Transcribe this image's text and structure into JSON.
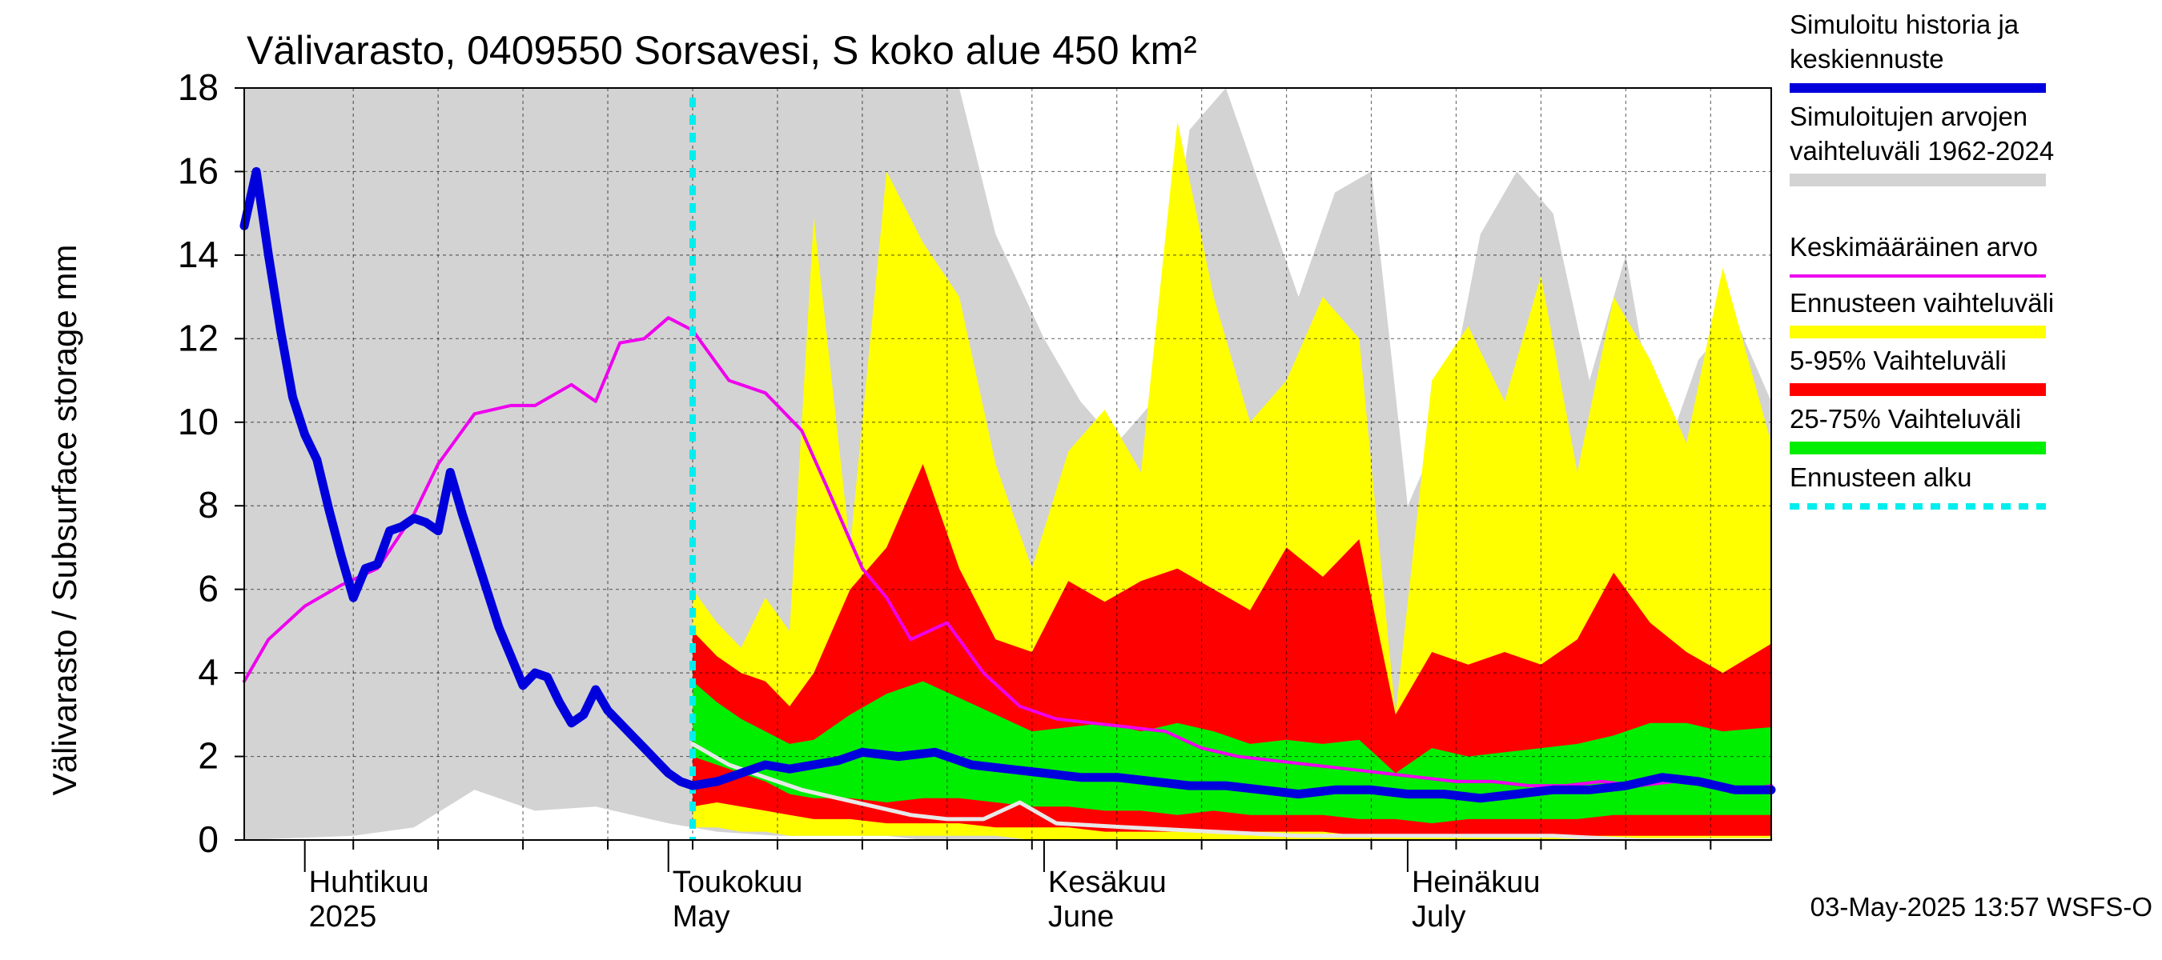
{
  "chart_data": {
    "type": "area",
    "title": "Välivarasto, 0409550 Sorsavesi, S koko alue 450 km²",
    "ylabel": "Välivarasto / Subsurface storage  mm",
    "xlabel": "",
    "ylim": [
      0,
      18
    ],
    "yticks": [
      0,
      2,
      4,
      6,
      8,
      10,
      12,
      14,
      16,
      18
    ],
    "xlim": [
      "2025-03-27",
      "2025-07-31"
    ],
    "grid": true,
    "legend_placement": "right",
    "month_labels": [
      {
        "date": "2025-04-01",
        "label1": "Huhtikuu",
        "label2": "2025"
      },
      {
        "date": "2025-05-01",
        "label1": "Toukokuu",
        "label2": "May"
      },
      {
        "date": "2025-06-01",
        "label1": "Kesäkuu",
        "label2": "June"
      },
      {
        "date": "2025-07-01",
        "label1": "Heinäkuu",
        "label2": "July"
      }
    ],
    "forecast_start": "2025-05-03",
    "footer": "03-May-2025 13:57 WSFS-O",
    "colors": {
      "history": "#0000dd",
      "range_all": "#d3d3d3",
      "mean": "#ee00ee",
      "forecast_range": "#ffff00",
      "p5_95": "#ff0000",
      "p25_75": "#00ee00",
      "forecast_start": "#00eeee",
      "white_line": "#e8e8e8"
    },
    "series": [
      {
        "name": "Simuloitu historia ja keskiennuste",
        "legend_lines": [
          "Simuloitu historia ja",
          "keskiennuste"
        ],
        "color": "#0000dd",
        "x": [
          "2025-03-27",
          "2025-03-28",
          "2025-03-29",
          "2025-03-30",
          "2025-03-31",
          "2025-04-01",
          "2025-04-02",
          "2025-04-03",
          "2025-04-04",
          "2025-04-05",
          "2025-04-06",
          "2025-04-07",
          "2025-04-08",
          "2025-04-09",
          "2025-04-10",
          "2025-04-11",
          "2025-04-12",
          "2025-04-13",
          "2025-04-14",
          "2025-04-15",
          "2025-04-16",
          "2025-04-17",
          "2025-04-18",
          "2025-04-19",
          "2025-04-20",
          "2025-04-21",
          "2025-04-22",
          "2025-04-23",
          "2025-04-24",
          "2025-04-25",
          "2025-04-26",
          "2025-04-27",
          "2025-04-28",
          "2025-04-29",
          "2025-04-30",
          "2025-05-01",
          "2025-05-02",
          "2025-05-03",
          "2025-05-05",
          "2025-05-07",
          "2025-05-09",
          "2025-05-11",
          "2025-05-13",
          "2025-05-15",
          "2025-05-17",
          "2025-05-20",
          "2025-05-23",
          "2025-05-26",
          "2025-05-29",
          "2025-06-01",
          "2025-06-04",
          "2025-06-07",
          "2025-06-10",
          "2025-06-13",
          "2025-06-16",
          "2025-06-19",
          "2025-06-22",
          "2025-06-25",
          "2025-06-28",
          "2025-07-01",
          "2025-07-04",
          "2025-07-07",
          "2025-07-10",
          "2025-07-13",
          "2025-07-16",
          "2025-07-19",
          "2025-07-22",
          "2025-07-25",
          "2025-07-28",
          "2025-07-31"
        ],
        "y": [
          14.7,
          16.0,
          14.0,
          12.2,
          10.6,
          9.7,
          9.1,
          7.9,
          6.8,
          5.8,
          6.5,
          6.6,
          7.4,
          7.5,
          7.7,
          7.6,
          7.4,
          8.8,
          7.8,
          6.9,
          6.0,
          5.1,
          4.4,
          3.7,
          4.0,
          3.9,
          3.3,
          2.8,
          3.0,
          3.6,
          3.1,
          2.8,
          2.5,
          2.2,
          1.9,
          1.6,
          1.4,
          1.3,
          1.4,
          1.6,
          1.8,
          1.7,
          1.8,
          1.9,
          2.1,
          2.0,
          2.1,
          1.8,
          1.7,
          1.6,
          1.5,
          1.5,
          1.4,
          1.3,
          1.3,
          1.2,
          1.1,
          1.2,
          1.2,
          1.1,
          1.1,
          1.0,
          1.1,
          1.2,
          1.2,
          1.3,
          1.5,
          1.4,
          1.2,
          1.2
        ]
      },
      {
        "name": "Simuloitujen arvojen vaihteluväli 1962-2024",
        "legend_lines": [
          "Simuloitujen arvojen",
          "vaihteluväli 1962-2024"
        ],
        "color": "#d3d3d3",
        "x": [
          "2025-03-27",
          "2025-04-05",
          "2025-04-10",
          "2025-04-15",
          "2025-04-20",
          "2025-04-25",
          "2025-05-01",
          "2025-05-05",
          "2025-05-10",
          "2025-05-12",
          "2025-05-15",
          "2025-05-19",
          "2025-05-22",
          "2025-05-25",
          "2025-05-28",
          "2025-06-01",
          "2025-06-04",
          "2025-06-07",
          "2025-06-10",
          "2025-06-13",
          "2025-06-16",
          "2025-06-19",
          "2025-06-22",
          "2025-06-25",
          "2025-06-28",
          "2025-07-01",
          "2025-07-04",
          "2025-07-07",
          "2025-07-10",
          "2025-07-13",
          "2025-07-16",
          "2025-07-19",
          "2025-07-22",
          "2025-07-25",
          "2025-07-28",
          "2025-07-31"
        ],
        "low": [
          0,
          0.1,
          0.3,
          1.2,
          0.7,
          0.8,
          0.4,
          0.2,
          0.1,
          0.1,
          0.1,
          0.1,
          0,
          0,
          0,
          0,
          0,
          0,
          0,
          0,
          0,
          0,
          0,
          0,
          0,
          0,
          0,
          0,
          0,
          0,
          0,
          0,
          0,
          0,
          0,
          0
        ],
        "high": [
          18,
          18,
          18,
          18,
          18,
          18,
          18,
          18,
          18,
          18,
          18,
          18,
          18,
          18,
          14.5,
          12.0,
          10.5,
          9.5,
          10.5,
          17.0,
          18.0,
          15.5,
          13.0,
          15.5,
          16.0,
          8.0,
          10.0,
          14.5,
          16.0,
          15.0,
          11.0,
          14.0,
          9.0,
          11.5,
          12.5,
          10.5
        ]
      },
      {
        "name": "Keskimääräinen arvo",
        "legend_lines": [
          "Keskimääräinen arvo"
        ],
        "color": "#ee00ee",
        "x": [
          "2025-03-27",
          "2025-03-29",
          "2025-04-01",
          "2025-04-04",
          "2025-04-07",
          "2025-04-10",
          "2025-04-12",
          "2025-04-15",
          "2025-04-18",
          "2025-04-20",
          "2025-04-23",
          "2025-04-25",
          "2025-04-27",
          "2025-04-29",
          "2025-05-01",
          "2025-05-03",
          "2025-05-06",
          "2025-05-09",
          "2025-05-12",
          "2025-05-14",
          "2025-05-17",
          "2025-05-19",
          "2025-05-21",
          "2025-05-24",
          "2025-05-27",
          "2025-05-30",
          "2025-06-02",
          "2025-06-05",
          "2025-06-08",
          "2025-06-11",
          "2025-06-14",
          "2025-06-17",
          "2025-06-20",
          "2025-06-23",
          "2025-06-26",
          "2025-06-29",
          "2025-07-02",
          "2025-07-05",
          "2025-07-08",
          "2025-07-11",
          "2025-07-14",
          "2025-07-17",
          "2025-07-20",
          "2025-07-23",
          "2025-07-26",
          "2025-07-29",
          "2025-07-31"
        ],
        "y": [
          3.8,
          4.8,
          5.6,
          6.1,
          6.5,
          7.8,
          9.0,
          10.2,
          10.4,
          10.4,
          10.9,
          10.5,
          11.9,
          12.0,
          12.5,
          12.2,
          11.0,
          10.7,
          9.8,
          8.5,
          6.5,
          5.8,
          4.8,
          5.2,
          4.0,
          3.2,
          2.9,
          2.8,
          2.7,
          2.6,
          2.2,
          2.0,
          1.9,
          1.8,
          1.7,
          1.6,
          1.5,
          1.4,
          1.4,
          1.3,
          1.3,
          1.4,
          1.3,
          1.4,
          1.3,
          1.2,
          1.3
        ]
      },
      {
        "name": "Ennusteen vaihteluväli",
        "legend_lines": [
          "Ennusteen vaihteluväli"
        ],
        "color": "#ffff00",
        "x": [
          "2025-05-03",
          "2025-05-05",
          "2025-05-07",
          "2025-05-09",
          "2025-05-11",
          "2025-05-13",
          "2025-05-16",
          "2025-05-19",
          "2025-05-22",
          "2025-05-25",
          "2025-05-28",
          "2025-05-31",
          "2025-06-03",
          "2025-06-06",
          "2025-06-09",
          "2025-06-12",
          "2025-06-15",
          "2025-06-18",
          "2025-06-21",
          "2025-06-24",
          "2025-06-27",
          "2025-06-30",
          "2025-07-03",
          "2025-07-06",
          "2025-07-09",
          "2025-07-12",
          "2025-07-15",
          "2025-07-18",
          "2025-07-21",
          "2025-07-24",
          "2025-07-27",
          "2025-07-31"
        ],
        "low": [
          0.3,
          0.3,
          0.2,
          0.2,
          0.1,
          0.1,
          0.1,
          0.1,
          0.1,
          0.1,
          0.1,
          0,
          0,
          0,
          0,
          0,
          0,
          0,
          0,
          0,
          0,
          0,
          0,
          0,
          0,
          0,
          0,
          0,
          0,
          0,
          0,
          0
        ],
        "high": [
          6.0,
          5.2,
          4.6,
          5.8,
          5.0,
          14.9,
          7.0,
          16.0,
          14.3,
          13.0,
          9.0,
          6.5,
          9.3,
          10.3,
          8.8,
          17.2,
          13.0,
          10.0,
          11.0,
          13.0,
          12.0,
          3.0,
          11.0,
          12.3,
          10.5,
          13.5,
          8.8,
          13.0,
          11.5,
          9.5,
          13.7,
          9.5
        ]
      },
      {
        "name": "5-95% Vaihteluväli",
        "legend_lines": [
          "5-95% Vaihteluväli"
        ],
        "color": "#ff0000",
        "x": [
          "2025-05-03",
          "2025-05-05",
          "2025-05-07",
          "2025-05-09",
          "2025-05-11",
          "2025-05-13",
          "2025-05-16",
          "2025-05-19",
          "2025-05-22",
          "2025-05-25",
          "2025-05-28",
          "2025-05-31",
          "2025-06-03",
          "2025-06-06",
          "2025-06-09",
          "2025-06-12",
          "2025-06-15",
          "2025-06-18",
          "2025-06-21",
          "2025-06-24",
          "2025-06-27",
          "2025-06-30",
          "2025-07-03",
          "2025-07-06",
          "2025-07-09",
          "2025-07-12",
          "2025-07-15",
          "2025-07-18",
          "2025-07-21",
          "2025-07-24",
          "2025-07-27",
          "2025-07-31"
        ],
        "low": [
          0.8,
          0.9,
          0.8,
          0.7,
          0.6,
          0.5,
          0.5,
          0.4,
          0.4,
          0.4,
          0.3,
          0.3,
          0.3,
          0.2,
          0.2,
          0.2,
          0.2,
          0.2,
          0.2,
          0.2,
          0.1,
          0.1,
          0.1,
          0.1,
          0.1,
          0.1,
          0.1,
          0.1,
          0.1,
          0.1,
          0.1,
          0.1
        ],
        "high": [
          5.0,
          4.4,
          4.0,
          3.8,
          3.2,
          4.0,
          6.0,
          7.0,
          9.0,
          6.5,
          4.8,
          4.5,
          6.2,
          5.7,
          6.2,
          6.5,
          6.0,
          5.5,
          7.0,
          6.3,
          7.2,
          3.0,
          4.5,
          4.2,
          4.5,
          4.2,
          4.8,
          6.4,
          5.2,
          4.5,
          4.0,
          4.7
        ]
      },
      {
        "name": "25-75% Vaihteluväli",
        "legend_lines": [
          "25-75% Vaihteluväli"
        ],
        "color": "#00ee00",
        "x": [
          "2025-05-03",
          "2025-05-05",
          "2025-05-07",
          "2025-05-09",
          "2025-05-11",
          "2025-05-13",
          "2025-05-16",
          "2025-05-19",
          "2025-05-22",
          "2025-05-25",
          "2025-05-28",
          "2025-05-31",
          "2025-06-03",
          "2025-06-06",
          "2025-06-09",
          "2025-06-12",
          "2025-06-15",
          "2025-06-18",
          "2025-06-21",
          "2025-06-24",
          "2025-06-27",
          "2025-06-30",
          "2025-07-03",
          "2025-07-06",
          "2025-07-09",
          "2025-07-12",
          "2025-07-15",
          "2025-07-18",
          "2025-07-21",
          "2025-07-24",
          "2025-07-27",
          "2025-07-31"
        ],
        "low": [
          2.0,
          1.8,
          1.6,
          1.4,
          1.1,
          1.0,
          1.0,
          0.9,
          1.0,
          1.0,
          0.9,
          0.8,
          0.8,
          0.7,
          0.7,
          0.6,
          0.7,
          0.6,
          0.6,
          0.6,
          0.5,
          0.5,
          0.4,
          0.5,
          0.5,
          0.5,
          0.5,
          0.6,
          0.6,
          0.6,
          0.6,
          0.6
        ],
        "high": [
          3.8,
          3.3,
          2.9,
          2.6,
          2.3,
          2.4,
          3.0,
          3.5,
          3.8,
          3.4,
          3.0,
          2.6,
          2.7,
          2.8,
          2.6,
          2.8,
          2.6,
          2.3,
          2.4,
          2.3,
          2.4,
          1.6,
          2.2,
          2.0,
          2.1,
          2.2,
          2.3,
          2.5,
          2.8,
          2.8,
          2.6,
          2.7
        ]
      },
      {
        "name": "Ennusteen alku",
        "legend_lines": [
          "Ennusteen alku"
        ],
        "color": "#00eeee"
      },
      {
        "name": "",
        "color": "#e8e8e8",
        "x": [
          "2025-05-03",
          "2025-05-06",
          "2025-05-09",
          "2025-05-12",
          "2025-05-15",
          "2025-05-18",
          "2025-05-21",
          "2025-05-24",
          "2025-05-27",
          "2025-05-30",
          "2025-06-02",
          "2025-06-08",
          "2025-06-15",
          "2025-06-22",
          "2025-06-29",
          "2025-07-06",
          "2025-07-13",
          "2025-07-20",
          "2025-07-27",
          "2025-07-31"
        ],
        "y": [
          2.3,
          1.8,
          1.5,
          1.2,
          1.0,
          0.8,
          0.6,
          0.5,
          0.5,
          0.9,
          0.4,
          0.3,
          0.2,
          0.1,
          0.1,
          0.1,
          0.1,
          0.0,
          0.0,
          0.0
        ]
      }
    ]
  }
}
